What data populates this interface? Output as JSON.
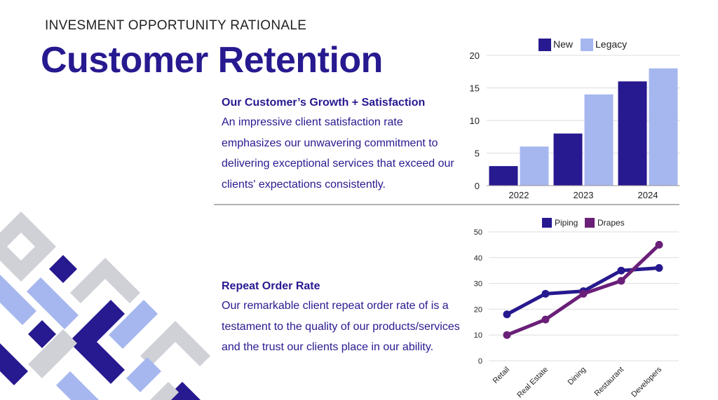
{
  "header": {
    "subtitle": "INVESMENT OPPORTUNITY RATIONALE",
    "title": "Customer Retention"
  },
  "sections": [
    {
      "heading": "Our Customer’s Growth + Satisfaction",
      "body": "An impressive client satisfaction rate emphasizes our unwavering commitment to delivering exceptional services that exceed our clients' expectations consistently."
    },
    {
      "heading": "Repeat Order Rate",
      "body": "Our remarkable client repeat order rate of is a testament to the quality of our products/services and the trust our clients place in our ability."
    }
  ],
  "colors": {
    "navy": "#27198f",
    "lavender": "#a6b7ef",
    "purple": "#6a1f78",
    "gray": "#cfd1d6"
  },
  "chart_data": [
    {
      "type": "bar",
      "categories": [
        "2022",
        "2023",
        "2024"
      ],
      "series": [
        {
          "name": "New",
          "values": [
            3,
            8,
            16
          ]
        },
        {
          "name": "Legacy",
          "values": [
            6,
            14,
            18
          ]
        }
      ],
      "ylim": [
        0,
        20
      ],
      "yticks": [
        0,
        5,
        10,
        15,
        20
      ],
      "legend": "top-center",
      "grid": true
    },
    {
      "type": "line",
      "categories": [
        "Retail",
        "Real Estate",
        "Dining",
        "Restaurant",
        "Developers"
      ],
      "series": [
        {
          "name": "Piping",
          "values": [
            18,
            26,
            27,
            35,
            36
          ]
        },
        {
          "name": "Drapes",
          "values": [
            10,
            16,
            26,
            31,
            45
          ]
        }
      ],
      "ylim": [
        0,
        50
      ],
      "yticks": [
        0,
        10,
        20,
        30,
        40,
        50
      ],
      "legend": "top-center",
      "grid": true
    }
  ]
}
